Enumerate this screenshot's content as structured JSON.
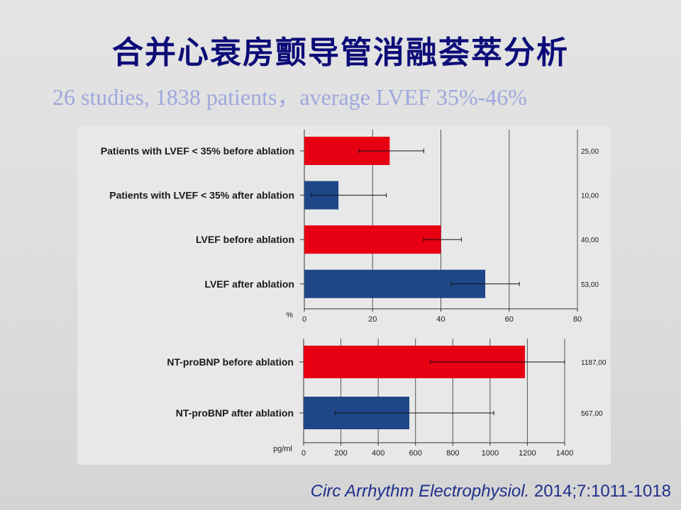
{
  "slide": {
    "title": "合并心衰房颤导管消融荟萃分析",
    "subtitle": "26  studies, 1838 patients，average LVEF 35%-46%",
    "citation_journal": "Circ Arrhythm Electrophysiol.",
    "citation_ref": " 2014;7:1011-1018"
  },
  "colors": {
    "before": "#e60012",
    "after": "#1f4788",
    "title": "#0c0c78",
    "subtitle": "#9ea8dc"
  },
  "chart_data": [
    {
      "type": "bar",
      "orientation": "horizontal",
      "unit_label": "%",
      "xlim": [
        0,
        80
      ],
      "xticks": [
        "0",
        "20",
        "40",
        "60",
        "80"
      ],
      "grid": "vertical",
      "bars": [
        {
          "label": "Patients with LVEF < 35% before ablation",
          "value": 25,
          "err_low": 16,
          "err_high": 35,
          "value_label": "25,00",
          "group": "before"
        },
        {
          "label": "Patients with LVEF < 35% after ablation",
          "value": 10,
          "err_low": 2,
          "err_high": 24,
          "value_label": "10,00",
          "group": "after"
        },
        {
          "label": "LVEF before ablation",
          "value": 40,
          "err_low": 35,
          "err_high": 46,
          "value_label": "40,00",
          "group": "before"
        },
        {
          "label": "LVEF after ablation",
          "value": 53,
          "err_low": 43,
          "err_high": 63,
          "value_label": "53,00",
          "group": "after"
        }
      ]
    },
    {
      "type": "bar",
      "orientation": "horizontal",
      "unit_label": "pg/ml",
      "xlim": [
        0,
        1400
      ],
      "xticks": [
        "0",
        "200",
        "400",
        "600",
        "800",
        "1000",
        "1200",
        "1400"
      ],
      "grid": "vertical",
      "bars": [
        {
          "label": "NT-proBNP before ablation",
          "value": 1187,
          "err_low": 680,
          "err_high": 1400,
          "value_label": "1187,00",
          "group": "before"
        },
        {
          "label": "NT-proBNP after ablation",
          "value": 567,
          "err_low": 170,
          "err_high": 1020,
          "value_label": "567,00",
          "group": "after"
        }
      ]
    }
  ]
}
